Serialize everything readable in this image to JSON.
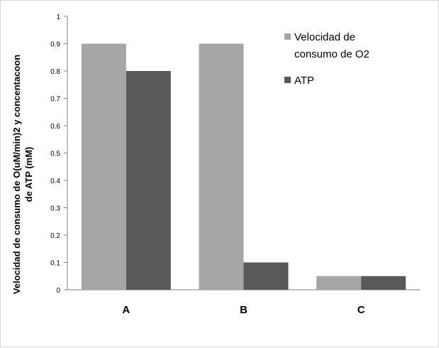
{
  "chart_data": {
    "type": "bar",
    "title": "",
    "xlabel": "",
    "ylabel_lines": [
      "Velocidad de consumo de O(uM/min)2 y concentacoon",
      "de ATP (mM)"
    ],
    "categories": [
      "A",
      "B",
      "C"
    ],
    "yticks": [
      "0",
      "0.1",
      "0.2",
      "0.3",
      "0.4",
      "0.5",
      "0.6",
      "0.7",
      "0.8",
      "0.9",
      "1"
    ],
    "ylim": [
      0,
      1
    ],
    "grid": false,
    "legend_position": "right",
    "series": [
      {
        "name_lines": [
          "Velocidad de",
          "consumo de O2"
        ],
        "color": "#a6a6a6",
        "values": [
          0.9,
          0.9,
          0.05
        ]
      },
      {
        "name_lines": [
          "ATP"
        ],
        "color": "#595959",
        "values": [
          0.8,
          0.1,
          0.05
        ]
      }
    ]
  }
}
